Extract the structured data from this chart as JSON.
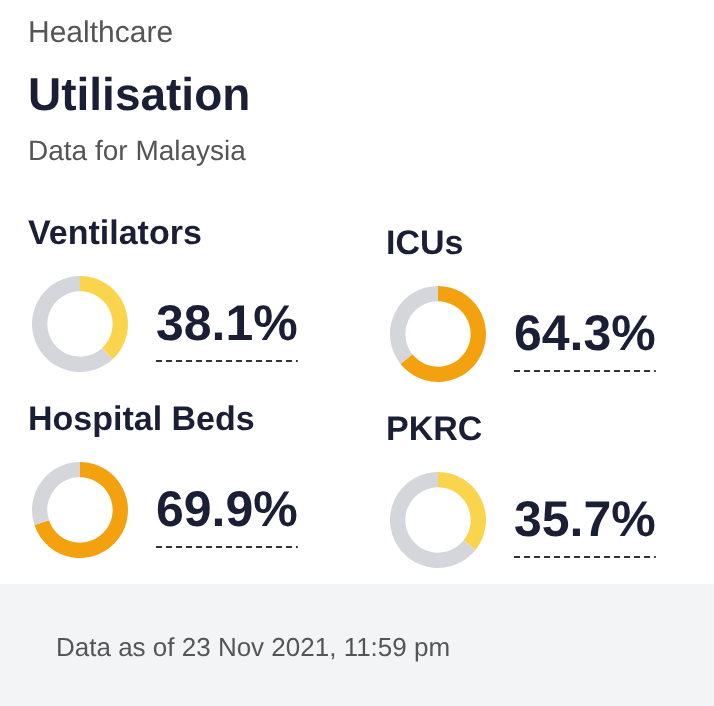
{
  "chart_data": [
    {
      "type": "other",
      "title": "Utilisation",
      "subtitle": "Data for Malaysia",
      "annotations": [
        "Healthcare",
        "Data as of 23 Nov 2021, 11:59 pm"
      ]
    },
    {
      "type": "donut",
      "title": "Ventilators",
      "categories": [
        null,
        null
      ],
      "values": [
        38.1,
        61.9
      ],
      "colors": [
        "#fbd44d",
        "#d4d6db"
      ],
      "value_labels": [
        "38.1%",
        null
      ]
    },
    {
      "type": "donut",
      "title": "ICUs",
      "categories": [
        null,
        null
      ],
      "values": [
        64.3,
        35.7
      ],
      "colors": [
        "#f4a10f",
        "#d4d6db"
      ],
      "value_labels": [
        "64.3%",
        null
      ]
    },
    {
      "type": "donut",
      "title": "Hospital Beds",
      "categories": [
        null,
        null
      ],
      "values": [
        69.9,
        30.1
      ],
      "colors": [
        "#f4a10f",
        "#d4d6db"
      ],
      "value_labels": [
        "69.9%",
        null
      ]
    },
    {
      "type": "donut",
      "title": "PKRC",
      "categories": [
        null,
        null
      ],
      "values": [
        35.7,
        64.3
      ],
      "colors": [
        "#fbd44d",
        "#d4d6db"
      ],
      "value_labels": [
        "35.7%",
        null
      ]
    }
  ]
}
